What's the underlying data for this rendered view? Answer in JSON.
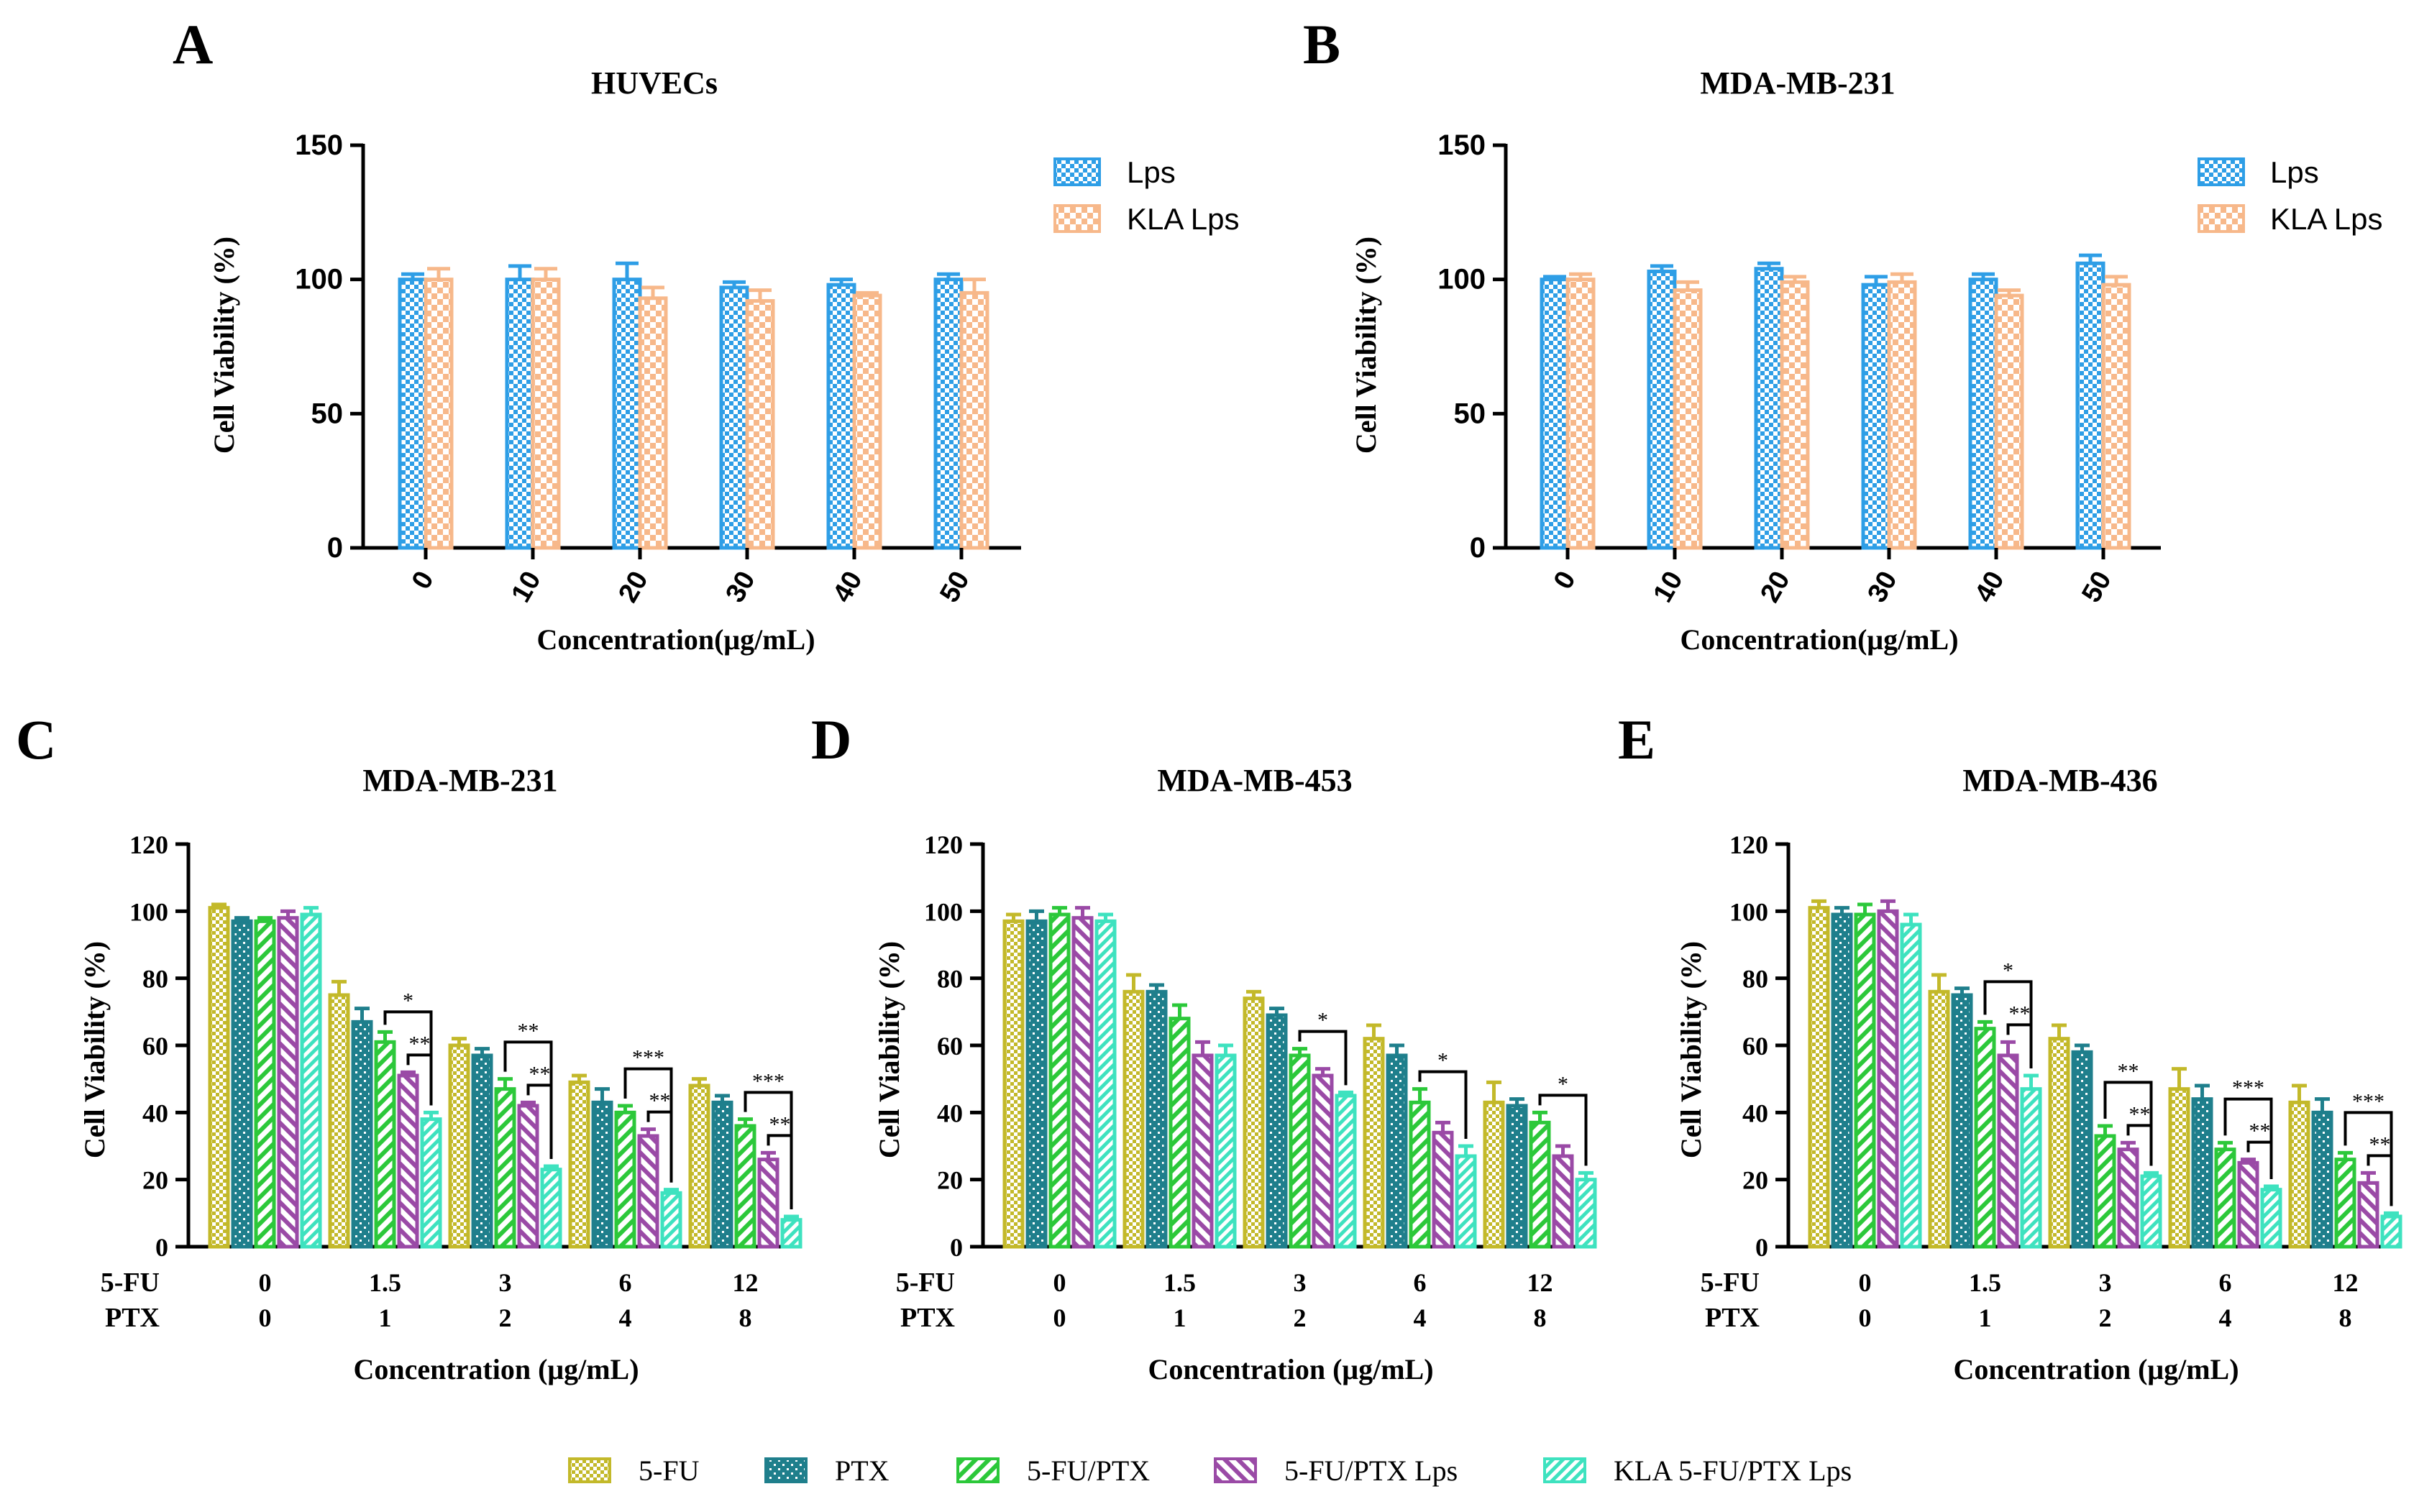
{
  "colors": {
    "lps": "#2e9ee6",
    "kla_lps": "#f7b88a",
    "fu": "#c3b92a",
    "ptx": "#1f7f8c",
    "fuptx": "#2cc83a",
    "fuptx_lps": "#9a4aa6",
    "kla_fuptx_lps": "#3ee2bf"
  },
  "legend_bottom": [
    "5-FU",
    "PTX",
    "5-FU/PTX",
    "5-FU/PTX Lps",
    "KLA 5-FU/PTX Lps"
  ],
  "chart_data": [
    {
      "panel": "A",
      "type": "bar",
      "title": "HUVECs",
      "xlabel": "Concentration(μg/mL)",
      "ylabel": "Cell Viability (%)",
      "ylim": [
        0,
        150
      ],
      "yticks": [
        0,
        50,
        100,
        150
      ],
      "categories": [
        "0",
        "10",
        "20",
        "30",
        "40",
        "50"
      ],
      "legend": "top-right",
      "series": [
        {
          "name": "Lps",
          "values": [
            100,
            100,
            100,
            97,
            98,
            100
          ],
          "errors": [
            2,
            5,
            6,
            2,
            2,
            2
          ]
        },
        {
          "name": "KLA Lps",
          "values": [
            100,
            100,
            93,
            92,
            94,
            95
          ],
          "errors": [
            4,
            4,
            4,
            4,
            1,
            5
          ]
        }
      ]
    },
    {
      "panel": "B",
      "type": "bar",
      "title": "MDA-MB-231",
      "xlabel": "Concentration(μg/mL)",
      "ylabel": "Cell Viability (%)",
      "ylim": [
        0,
        150
      ],
      "yticks": [
        0,
        50,
        100,
        150
      ],
      "categories": [
        "0",
        "10",
        "20",
        "30",
        "40",
        "50"
      ],
      "legend": "top-right",
      "series": [
        {
          "name": "Lps",
          "values": [
            100,
            103,
            104,
            98,
            100,
            106
          ],
          "errors": [
            1,
            2,
            2,
            3,
            2,
            3
          ]
        },
        {
          "name": "KLA Lps",
          "values": [
            100,
            96,
            99,
            99,
            94,
            98
          ],
          "errors": [
            2,
            3,
            2,
            3,
            2,
            3
          ]
        }
      ]
    },
    {
      "panel": "C",
      "type": "bar",
      "title": "MDA-MB-231",
      "xlabel": "Concentration (μg/mL)",
      "ylabel": "Cell Viability (%)",
      "ylim": [
        0,
        120
      ],
      "yticks": [
        0,
        20,
        40,
        60,
        80,
        100,
        120
      ],
      "row_labels": [
        "5-FU",
        "PTX"
      ],
      "categories": [
        "0",
        "1.5",
        "3",
        "6",
        "12"
      ],
      "categories2": [
        "0",
        "1",
        "2",
        "4",
        "8"
      ],
      "series": [
        {
          "name": "5-FU",
          "values": [
            101,
            75,
            60,
            49,
            48
          ],
          "errors": [
            1,
            4,
            2,
            2,
            2
          ]
        },
        {
          "name": "PTX",
          "values": [
            97,
            67,
            57,
            43,
            43
          ],
          "errors": [
            1,
            4,
            2,
            4,
            2
          ]
        },
        {
          "name": "5-FU/PTX",
          "values": [
            97,
            61,
            47,
            40,
            36
          ],
          "errors": [
            1,
            3,
            3,
            2,
            2
          ]
        },
        {
          "name": "5-FU/PTX Lps",
          "values": [
            98,
            51,
            42,
            33,
            26
          ],
          "errors": [
            2,
            1,
            1,
            2,
            2
          ]
        },
        {
          "name": "KLA 5-FU/PTX Lps",
          "values": [
            99,
            38,
            23,
            16,
            8
          ],
          "errors": [
            2,
            2,
            1,
            1,
            1
          ]
        }
      ],
      "annotations": [
        {
          "group": "1.5",
          "from": "5-FU/PTX",
          "to": "KLA 5-FU/PTX Lps",
          "label": "*"
        },
        {
          "group": "1.5",
          "from": "5-FU/PTX Lps",
          "to": "KLA 5-FU/PTX Lps",
          "label": "**"
        },
        {
          "group": "3",
          "from": "5-FU/PTX",
          "to": "KLA 5-FU/PTX Lps",
          "label": "**"
        },
        {
          "group": "3",
          "from": "5-FU/PTX Lps",
          "to": "KLA 5-FU/PTX Lps",
          "label": "**"
        },
        {
          "group": "6",
          "from": "5-FU/PTX",
          "to": "KLA 5-FU/PTX Lps",
          "label": "***"
        },
        {
          "group": "6",
          "from": "5-FU/PTX Lps",
          "to": "KLA 5-FU/PTX Lps",
          "label": "**"
        },
        {
          "group": "12",
          "from": "5-FU/PTX",
          "to": "KLA 5-FU/PTX Lps",
          "label": "***"
        },
        {
          "group": "12",
          "from": "5-FU/PTX Lps",
          "to": "KLA 5-FU/PTX Lps",
          "label": "**"
        }
      ]
    },
    {
      "panel": "D",
      "type": "bar",
      "title": "MDA-MB-453",
      "xlabel": "Concentration (μg/mL)",
      "ylabel": "Cell Viability (%)",
      "ylim": [
        0,
        120
      ],
      "yticks": [
        0,
        20,
        40,
        60,
        80,
        100,
        120
      ],
      "row_labels": [
        "5-FU",
        "PTX"
      ],
      "categories": [
        "0",
        "1.5",
        "3",
        "6",
        "12"
      ],
      "categories2": [
        "0",
        "1",
        "2",
        "4",
        "8"
      ],
      "series": [
        {
          "name": "5-FU",
          "values": [
            97,
            76,
            74,
            62,
            43
          ],
          "errors": [
            2,
            5,
            2,
            4,
            6
          ]
        },
        {
          "name": "PTX",
          "values": [
            97,
            76,
            69,
            57,
            42
          ],
          "errors": [
            3,
            2,
            2,
            3,
            2
          ]
        },
        {
          "name": "5-FU/PTX",
          "values": [
            99,
            68,
            57,
            43,
            37
          ],
          "errors": [
            2,
            4,
            2,
            4,
            3
          ]
        },
        {
          "name": "5-FU/PTX Lps",
          "values": [
            98,
            57,
            51,
            34,
            27
          ],
          "errors": [
            3,
            4,
            2,
            3,
            3
          ]
        },
        {
          "name": "KLA 5-FU/PTX Lps",
          "values": [
            97,
            57,
            45,
            27,
            20
          ],
          "errors": [
            2,
            3,
            1,
            3,
            2
          ]
        }
      ],
      "annotations": [
        {
          "group": "3",
          "from": "5-FU/PTX",
          "to": "KLA 5-FU/PTX Lps",
          "label": "*"
        },
        {
          "group": "6",
          "from": "5-FU/PTX",
          "to": "KLA 5-FU/PTX Lps",
          "label": "*"
        },
        {
          "group": "12",
          "from": "5-FU/PTX",
          "to": "KLA 5-FU/PTX Lps",
          "label": "*"
        }
      ]
    },
    {
      "panel": "E",
      "type": "bar",
      "title": "MDA-MB-436",
      "xlabel": "Concentration (μg/mL)",
      "ylabel": "Cell Viability (%)",
      "ylim": [
        0,
        120
      ],
      "yticks": [
        0,
        20,
        40,
        60,
        80,
        100,
        120
      ],
      "row_labels": [
        "5-FU",
        "PTX"
      ],
      "categories": [
        "0",
        "1.5",
        "3",
        "6",
        "12"
      ],
      "categories2": [
        "0",
        "1",
        "2",
        "4",
        "8"
      ],
      "series": [
        {
          "name": "5-FU",
          "values": [
            101,
            76,
            62,
            47,
            43
          ],
          "errors": [
            2,
            5,
            4,
            6,
            5
          ]
        },
        {
          "name": "PTX",
          "values": [
            99,
            75,
            58,
            44,
            40
          ],
          "errors": [
            2,
            2,
            2,
            4,
            4
          ]
        },
        {
          "name": "5-FU/PTX",
          "values": [
            99,
            65,
            33,
            29,
            26
          ],
          "errors": [
            3,
            2,
            3,
            2,
            2
          ]
        },
        {
          "name": "5-FU/PTX Lps",
          "values": [
            100,
            57,
            29,
            25,
            19
          ],
          "errors": [
            3,
            4,
            2,
            1,
            3
          ]
        },
        {
          "name": "KLA 5-FU/PTX Lps",
          "values": [
            96,
            47,
            21,
            17,
            9
          ],
          "errors": [
            3,
            4,
            1,
            1,
            1
          ]
        }
      ],
      "annotations": [
        {
          "group": "1.5",
          "from": "5-FU/PTX",
          "to": "KLA 5-FU/PTX Lps",
          "label": "*"
        },
        {
          "group": "1.5",
          "from": "5-FU/PTX Lps",
          "to": "KLA 5-FU/PTX Lps",
          "label": "**"
        },
        {
          "group": "3",
          "from": "5-FU/PTX",
          "to": "KLA 5-FU/PTX Lps",
          "label": "**"
        },
        {
          "group": "3",
          "from": "5-FU/PTX Lps",
          "to": "KLA 5-FU/PTX Lps",
          "label": "**"
        },
        {
          "group": "6",
          "from": "5-FU/PTX",
          "to": "KLA 5-FU/PTX Lps",
          "label": "***"
        },
        {
          "group": "6",
          "from": "5-FU/PTX Lps",
          "to": "KLA 5-FU/PTX Lps",
          "label": "**"
        },
        {
          "group": "12",
          "from": "5-FU/PTX",
          "to": "KLA 5-FU/PTX Lps",
          "label": "***"
        },
        {
          "group": "12",
          "from": "5-FU/PTX Lps",
          "to": "KLA 5-FU/PTX Lps",
          "label": "**"
        }
      ]
    }
  ]
}
